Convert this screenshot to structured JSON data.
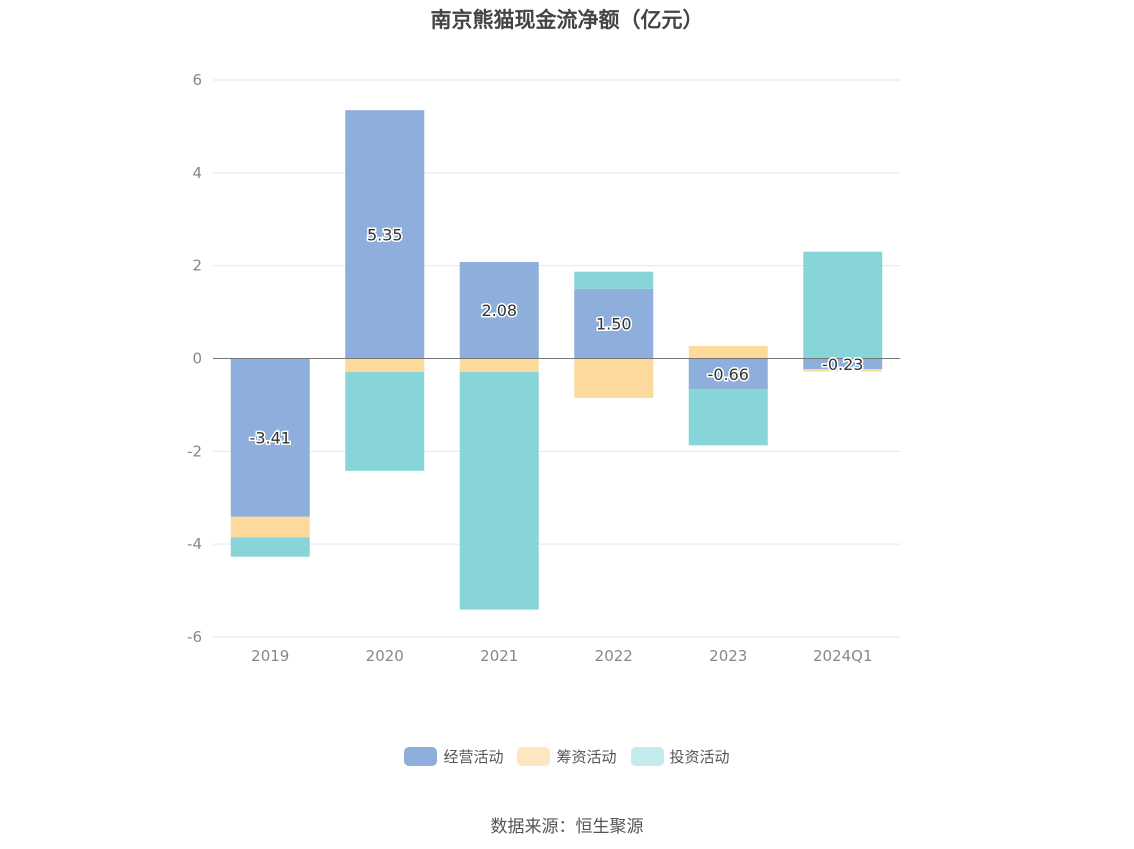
{
  "chart_data": {
    "type": "bar",
    "stacked": true,
    "title": "南京熊猫现金流净额（亿元）",
    "categories": [
      "2019",
      "2020",
      "2021",
      "2022",
      "2023",
      "2024Q1"
    ],
    "series": [
      {
        "name": "经营活动",
        "color": "#8eaedb",
        "values": [
          -3.41,
          5.35,
          2.08,
          1.5,
          -0.66,
          -0.23
        ]
      },
      {
        "name": "筹资活动",
        "color": "#fdd99b",
        "values": [
          -0.44,
          -0.29,
          -0.29,
          -0.85,
          0.27,
          -0.05
        ]
      },
      {
        "name": "投资活动",
        "color": "#88d5d9",
        "values": [
          -0.42,
          -2.13,
          -5.12,
          0.37,
          -1.21,
          2.3
        ]
      }
    ],
    "data_labels": [
      "-3.41",
      "5.35",
      "2.08",
      "1.50",
      "-0.66",
      "-0.23"
    ],
    "yticks": [
      "6",
      "4",
      "2",
      "0",
      "-2",
      "-4",
      "-6"
    ],
    "ylim": [
      -6,
      6
    ],
    "grid": true,
    "legend_position": "bottom"
  },
  "source": "数据来源：恒生聚源"
}
